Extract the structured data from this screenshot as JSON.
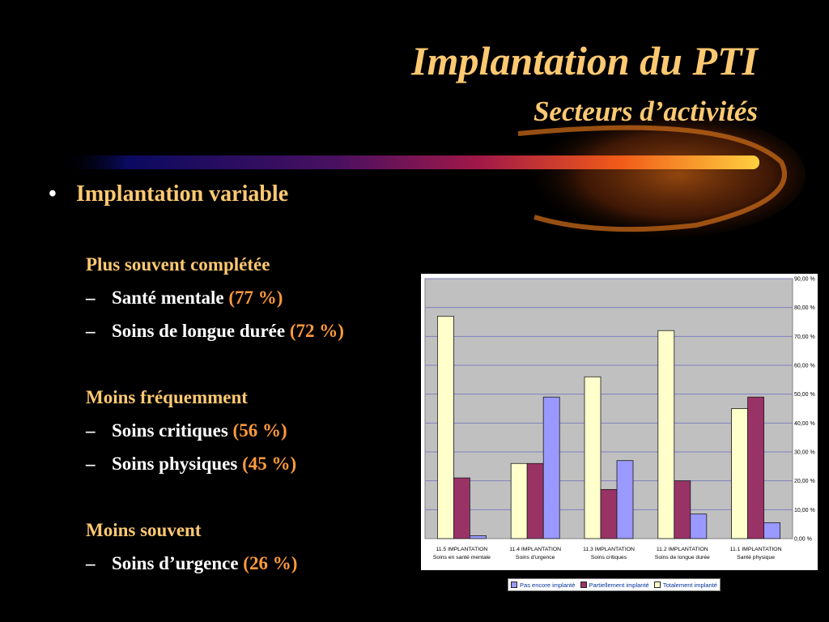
{
  "slide": {
    "title": "Implantation du PTI",
    "subtitle": "Secteurs d’activités",
    "bullet_symbol": "•",
    "bullet": "Implantation variable",
    "dash": "–",
    "groups": [
      {
        "heading": "Plus souvent complétée",
        "items": [
          {
            "label": "Santé mentale ",
            "value": "(77 %)"
          },
          {
            "label": "Soins de longue durée ",
            "value": "(72 %)"
          }
        ]
      },
      {
        "heading": "Moins fréquemment",
        "items": [
          {
            "label": "Soins critiques ",
            "value": "(56 %)"
          },
          {
            "label": "Soins physiques ",
            "value": "(45 %)"
          }
        ]
      },
      {
        "heading": "Moins souvent",
        "items": [
          {
            "label": "Soins d’urgence ",
            "value": "(26 %)"
          }
        ]
      }
    ]
  },
  "chart_data": {
    "type": "bar",
    "categories": [
      {
        "line1": "11.5 IMPLANTATION",
        "line2": "Soins en santé mentale"
      },
      {
        "line1": "11.4 IMPLANTATION",
        "line2": "Soins d'urgence"
      },
      {
        "line1": "11.3 IMPLANTATION",
        "line2": "Soins critiques"
      },
      {
        "line1": "11.2 IMPLANTATION",
        "line2": "Soins de longue durée"
      },
      {
        "line1": "11.1 IMPLANTATION",
        "line2": "Santé physique"
      }
    ],
    "series": [
      {
        "name": "Totalement implanté",
        "color": "#ffffcc",
        "values": [
          77,
          26,
          56,
          72,
          45
        ]
      },
      {
        "name": "Partiellement implanté",
        "color": "#993366",
        "values": [
          21,
          26,
          17,
          20,
          49
        ]
      },
      {
        "name": "Pas encore implanté",
        "color": "#9999ff",
        "values": [
          1,
          49,
          27,
          8.5,
          5.5
        ]
      }
    ],
    "legend_order": [
      2,
      1,
      0
    ],
    "ylim": [
      0,
      90
    ],
    "y_ticks": [
      {
        "value": 0,
        "label": "0,00 %"
      },
      {
        "value": 10,
        "label": "10,00 %"
      },
      {
        "value": 20,
        "label": "20,00 %"
      },
      {
        "value": 30,
        "label": "30,00 %"
      },
      {
        "value": 40,
        "label": "40,00 %"
      },
      {
        "value": 50,
        "label": "50,00 %"
      },
      {
        "value": 60,
        "label": "60,00 %"
      },
      {
        "value": 70,
        "label": "70,00 %"
      },
      {
        "value": 80,
        "label": "80,00 %"
      },
      {
        "value": 90,
        "label": "90,00 %"
      }
    ],
    "y_axis_position": "right",
    "grid": true,
    "legend_position": "bottom",
    "plot_background": "#c0c0c0",
    "gridline_color": "#7f7fbf"
  }
}
